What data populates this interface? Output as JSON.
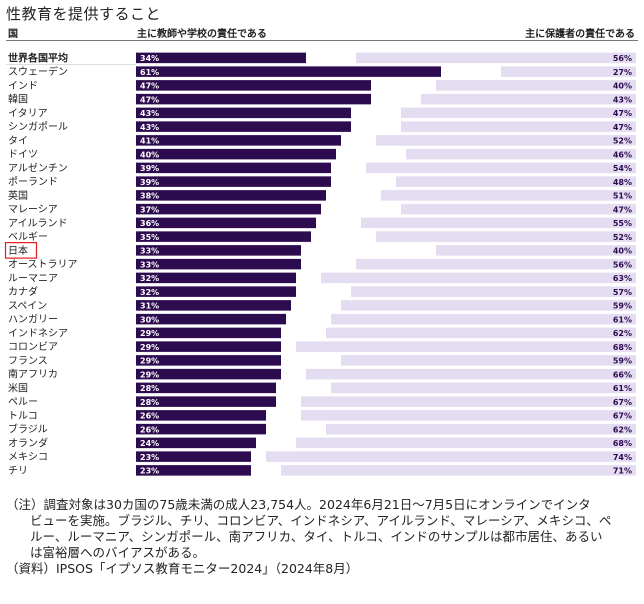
{
  "title": "性教育を提供すること",
  "headers": {
    "country": "国",
    "school": "主に教師や学校の責任である",
    "parent": "主に保護者の責任である"
  },
  "colors": {
    "school": "#2d0b4f",
    "parent": "#e4dcf0",
    "highlight": "#e0201e"
  },
  "highlight_country": "日本",
  "chart_data": {
    "type": "bar",
    "orientation": "horizontal",
    "stacked": "diverging",
    "categories": [
      "世界各国平均",
      "スウェーデン",
      "インド",
      "韓国",
      "イタリア",
      "シンガポール",
      "タイ",
      "ドイツ",
      "アルゼンチン",
      "ポーランド",
      "英国",
      "マレーシア",
      "アイルランド",
      "ベルギー",
      "日本",
      "オーストラリア",
      "ルーマニア",
      "カナダ",
      "スペイン",
      "ハンガリー",
      "インドネシア",
      "コロンビア",
      "フランス",
      "南アフリカ",
      "米国",
      "ペルー",
      "トルコ",
      "ブラジル",
      "オランダ",
      "メキシコ",
      "チリ"
    ],
    "series": [
      {
        "name": "主に教師や学校の責任である",
        "values": [
          34,
          61,
          47,
          47,
          43,
          43,
          41,
          40,
          39,
          39,
          38,
          37,
          36,
          35,
          33,
          33,
          32,
          32,
          31,
          30,
          29,
          29,
          29,
          29,
          28,
          28,
          26,
          26,
          24,
          23,
          23
        ]
      },
      {
        "name": "主に保護者の責任である",
        "values": [
          56,
          27,
          40,
          43,
          47,
          47,
          52,
          46,
          54,
          48,
          51,
          47,
          55,
          52,
          40,
          56,
          63,
          57,
          59,
          61,
          62,
          68,
          59,
          66,
          61,
          67,
          67,
          62,
          68,
          74,
          71
        ]
      }
    ],
    "value_format": "{v}%",
    "xlim": [
      0,
      100
    ]
  },
  "notes": {
    "note_line1": "（注）調査対象は30カ国の75歳未満の成人23,754人。2024年6月21日～7月5日にオンラインでインタ",
    "note_line2": "ビューを実施。ブラジル、チリ、コロンビア、インドネシア、アイルランド、マレーシア、メキシコ、ペ",
    "note_line3": "ルー、ルーマニア、シンガポール、南アフリカ、タイ、トルコ、インドのサンプルは都市居住、あるい",
    "note_line4": "は富裕層へのバイアスがある。",
    "source": "（資料）IPSOS「イプソス教育モニター2024」（2024年8月）"
  }
}
